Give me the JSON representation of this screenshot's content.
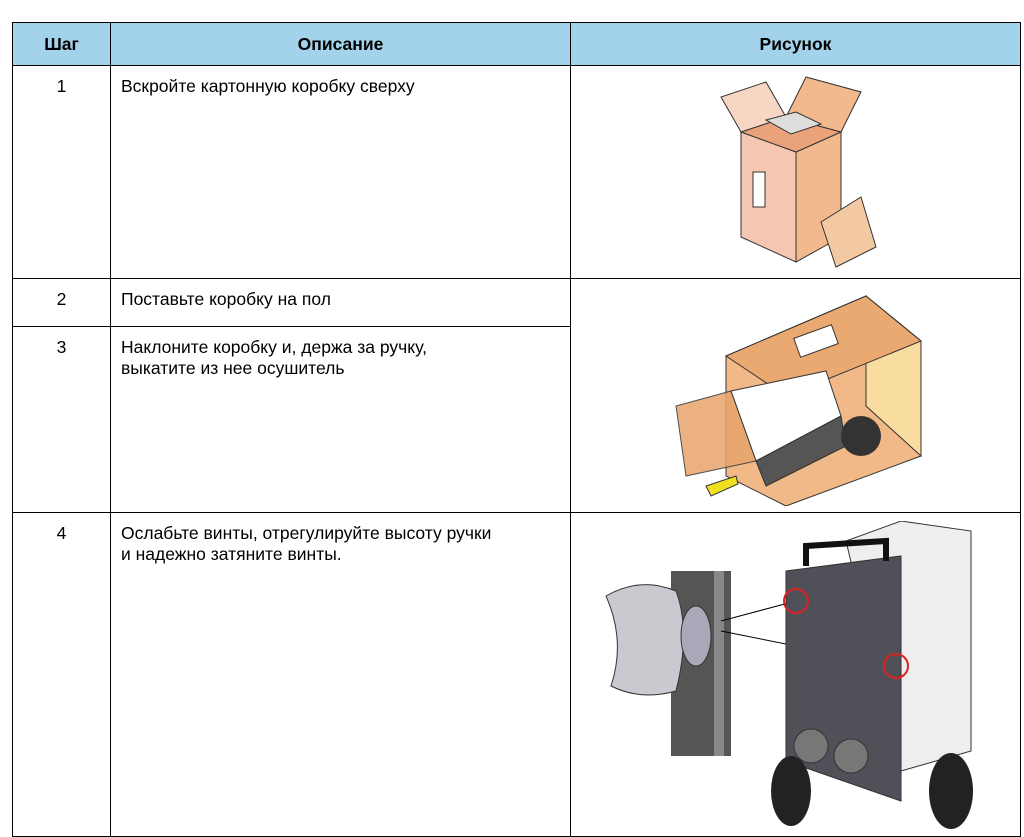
{
  "table": {
    "header": [
      "Шаг",
      "Описание",
      "Рисунок"
    ],
    "rows": [
      {
        "step": 1,
        "description": "Вскройте картонную коробку сверху"
      },
      {
        "step": 2,
        "description": "Поставьте коробку на пол"
      },
      {
        "step": 3,
        "description": "Наклоните коробку и, держа за ручку, выкатите из нее осушитель"
      },
      {
        "step": 4,
        "description": "Ослабьте винты, отрегулируйте высоту ручки и надежно затяните винты."
      }
    ]
  }
}
